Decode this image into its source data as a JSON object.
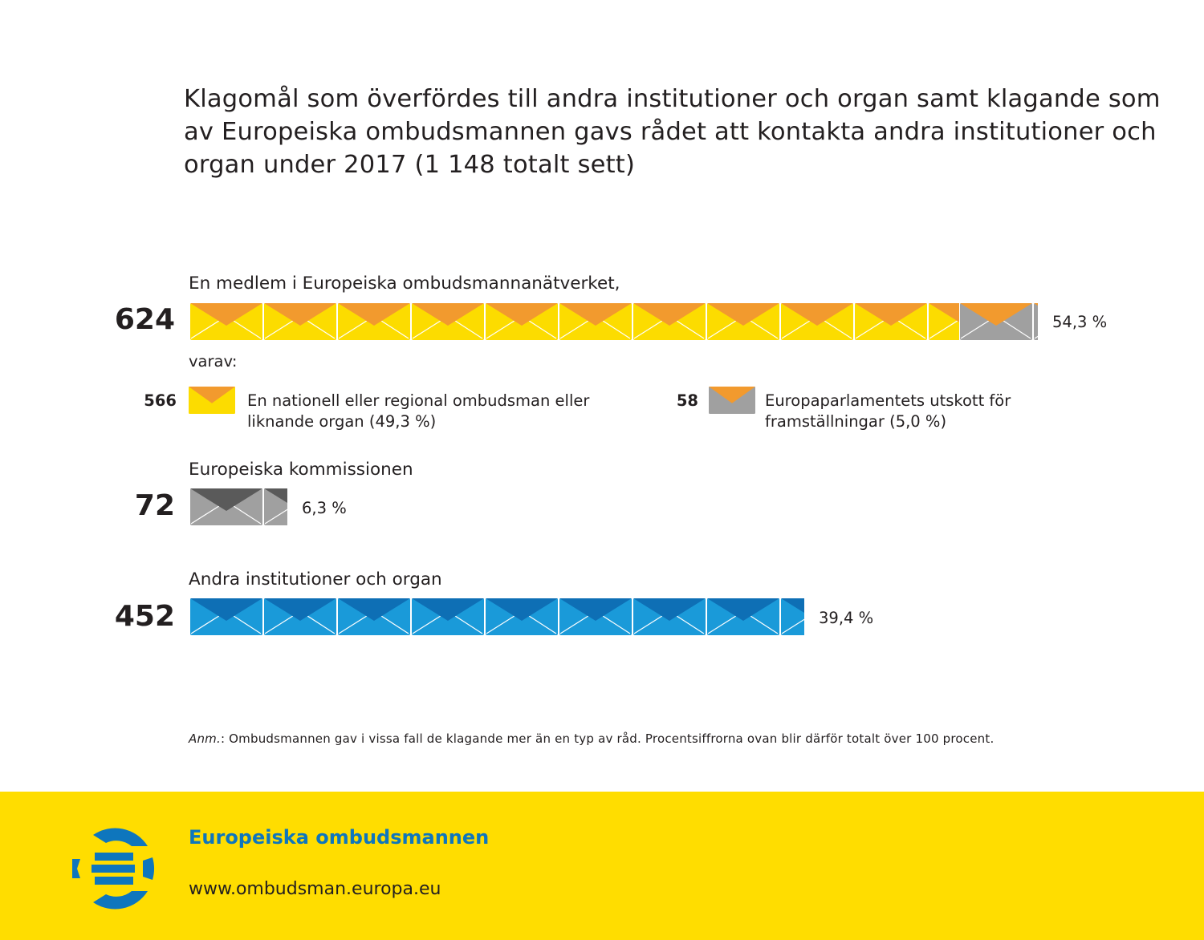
{
  "chart_data": {
    "type": "pictogram-bar",
    "title": "Klagomål som överfördes till andra institutioner och organ samt klagande som av Europeiska ombudsmannen gavs rådet att kontakta andra institutioner och organ under 2017 (1 148 totalt sett)",
    "total": 1148,
    "categories": [
      {
        "label": "En medlem i Europeiska ombudsmannanätverket,",
        "count": "624",
        "percent_label": "54,3 %",
        "value": 624,
        "percent": 54.3,
        "breakdown_intro": "varav:",
        "breakdown": [
          {
            "count": "566",
            "label_line1": "En nationell eller regional ombudsman eller",
            "label_line2": "liknande organ (49,3 %)",
            "value": 566,
            "percent": 49.3,
            "color": "#fcdc00",
            "flap_color": "#f29a2e"
          },
          {
            "count": "58",
            "label_line1": "Europaparlamentets utskott för",
            "label_line2": "framställningar (5,0 %)",
            "value": 58,
            "percent": 5.0,
            "color": "#a0a0a0",
            "flap_color": "#f29a2e"
          }
        ]
      },
      {
        "label": "Europeiska kommissionen",
        "count": "72",
        "percent_label": "6,3 %",
        "value": 72,
        "percent": 6.3,
        "color": "#a0a0a0",
        "flap_color": "#5a5a5a"
      },
      {
        "label": "Andra institutioner och organ",
        "count": "452",
        "percent_label": "39,4 %",
        "value": 452,
        "percent": 39.4,
        "color": "#1a9ad9",
        "flap_color": "#0e6fb5"
      }
    ],
    "units_per_envelope": 54.3,
    "note_prefix": "Anm.",
    "note": ": Ombudsmannen gav i vissa fall de klagande mer än en typ av råd. Procentsiffrorna ovan blir därför totalt över 100 procent."
  },
  "footer": {
    "organization": "Europeiska ombudsmannen",
    "url": "www.ombudsman.europa.eu",
    "background": "#ffdd00",
    "accent": "#0e76bd"
  },
  "icons": {
    "envelope": "envelope-icon",
    "logo": "ombudsman-logo-icon"
  }
}
